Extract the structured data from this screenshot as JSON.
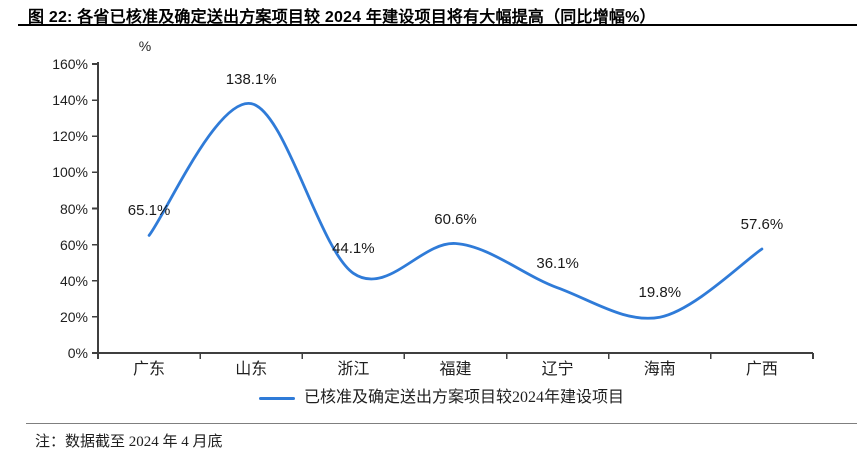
{
  "figure": {
    "title": "图 22:  各省已核准及确定送出方案项目较 2024 年建设项目将有大幅提高（同比增幅%）",
    "note": "注：数据截至 2024 年 4 月底"
  },
  "chart_data": {
    "type": "line",
    "smooth": true,
    "grid": false,
    "unit_label": "%",
    "categories": [
      "广东",
      "山东",
      "浙江",
      "福建",
      "辽宁",
      "海南",
      "广西"
    ],
    "series": [
      {
        "name": "已核准及确定送出方案项目较2024年建设项目",
        "values": [
          65.1,
          138.1,
          44.1,
          60.6,
          36.1,
          19.8,
          57.6
        ]
      }
    ],
    "data_labels": [
      "65.1%",
      "138.1%",
      "44.1%",
      "60.6%",
      "36.1%",
      "19.8%",
      "57.6%"
    ],
    "y_ticks": [
      "0%",
      "20%",
      "40%",
      "60%",
      "80%",
      "100%",
      "120%",
      "140%",
      "160%"
    ],
    "ylim": [
      0,
      160
    ],
    "legend": {
      "label": "已核准及确定送出方案项目较2024年建设项目",
      "position": "bottom"
    },
    "colors": {
      "line": "#2F7BD8",
      "axis": "#3f3f3f",
      "text": "#1f1f1f"
    }
  }
}
